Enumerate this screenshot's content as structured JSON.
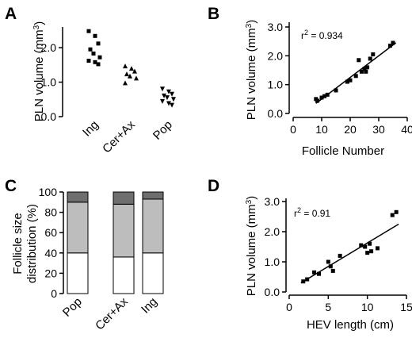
{
  "chart_data": [
    {
      "panel": "A",
      "type": "scatter",
      "ylabel": "PLN volume (mm3)",
      "ylabel_main": "PLN volume (mm",
      "ylabel_sup": "3",
      "ylabel_close": ")",
      "ylim": [
        0,
        2.6
      ],
      "yticks": [
        "0.0",
        "1.0",
        "2.0"
      ],
      "yticks_values": [
        0,
        1,
        2
      ],
      "categories": [
        "Ing",
        "Cer+Ax",
        "Pop"
      ],
      "markers": [
        "square",
        "triangle-up",
        "triangle-down"
      ],
      "series": [
        {
          "values": [
            2.48,
            2.34,
            2.12,
            1.95,
            1.83,
            1.72,
            1.62,
            1.58,
            1.52
          ]
        },
        {
          "values": [
            1.47,
            1.4,
            1.32,
            1.24,
            1.18,
            1.12,
            0.98
          ]
        },
        {
          "values": [
            0.8,
            0.72,
            0.65,
            0.6,
            0.55,
            0.5,
            0.44,
            0.38,
            0.33
          ]
        }
      ]
    },
    {
      "panel": "B",
      "type": "scatter",
      "xlabel": "Follicle Number",
      "ylabel": "PLN volume (mm3)",
      "ylabel_main": "PLN volume (mm",
      "ylabel_sup": "3",
      "ylabel_close": ")",
      "xlim": [
        0,
        40
      ],
      "ylim": [
        0,
        3.0
      ],
      "xticks": [
        "0",
        "10",
        "20",
        "30",
        "40"
      ],
      "xticks_values": [
        0,
        10,
        20,
        30,
        40
      ],
      "yticks": [
        "0.0",
        "1.0",
        "2.0",
        "3.0"
      ],
      "yticks_values": [
        0,
        1,
        2,
        3
      ],
      "annotation": {
        "pre": "r",
        "sup": "2",
        "post": " = 0.934"
      },
      "fit_line": {
        "x": [
          8,
          36
        ],
        "y": [
          0.35,
          2.45
        ]
      },
      "points": [
        {
          "x": 8,
          "y": 0.5
        },
        {
          "x": 8.5,
          "y": 0.44
        },
        {
          "x": 10,
          "y": 0.55
        },
        {
          "x": 11,
          "y": 0.6
        },
        {
          "x": 12,
          "y": 0.65
        },
        {
          "x": 15,
          "y": 0.8
        },
        {
          "x": 19,
          "y": 1.1
        },
        {
          "x": 20,
          "y": 1.15
        },
        {
          "x": 22,
          "y": 1.3
        },
        {
          "x": 23,
          "y": 1.85
        },
        {
          "x": 24,
          "y": 1.45
        },
        {
          "x": 25,
          "y": 1.55
        },
        {
          "x": 25.5,
          "y": 1.45
        },
        {
          "x": 26,
          "y": 1.6
        },
        {
          "x": 27,
          "y": 1.9
        },
        {
          "x": 28,
          "y": 2.05
        },
        {
          "x": 34,
          "y": 2.35
        },
        {
          "x": 35,
          "y": 2.45
        }
      ]
    },
    {
      "panel": "C",
      "type": "bar",
      "stacked": true,
      "ylabel": "Follicle size distribution (%)",
      "ylabel_lines": [
        "Follicle size",
        "distribution (%)"
      ],
      "ylim": [
        0,
        100
      ],
      "yticks": [
        "0",
        "20",
        "40",
        "60",
        "80",
        "100"
      ],
      "yticks_values": [
        0,
        20,
        40,
        60,
        80,
        100
      ],
      "categories": [
        "Pop",
        "Cer+Ax",
        "Ing"
      ],
      "colors": [
        "#ffffff",
        "#bdbdbd",
        "#6e6e6e"
      ],
      "series": [
        {
          "values": [
            40,
            36,
            40
          ]
        },
        {
          "values": [
            50,
            52,
            53
          ]
        },
        {
          "values": [
            10,
            12,
            7
          ]
        }
      ]
    },
    {
      "panel": "D",
      "type": "scatter",
      "xlabel": "HEV length (cm)",
      "ylabel": "PLN volume (mm3)",
      "ylabel_main": "PLN volume (mm",
      "ylabel_sup": "3",
      "ylabel_close": ")",
      "xlim": [
        0,
        15
      ],
      "ylim": [
        0,
        3.0
      ],
      "xticks": [
        "0",
        "5",
        "10",
        "15"
      ],
      "xticks_values": [
        0,
        5,
        10,
        15
      ],
      "yticks": [
        "0.0",
        "1.0",
        "2.0",
        "3.0"
      ],
      "yticks_values": [
        0,
        1,
        2,
        3
      ],
      "annotation": {
        "pre": "r",
        "sup": "2",
        "post": " = 0.91"
      },
      "fit_line": {
        "x": [
          1.5,
          14
        ],
        "y": [
          0.3,
          2.25
        ]
      },
      "points": [
        {
          "x": 1.8,
          "y": 0.35
        },
        {
          "x": 2.3,
          "y": 0.42
        },
        {
          "x": 3.2,
          "y": 0.65
        },
        {
          "x": 3.8,
          "y": 0.6
        },
        {
          "x": 5.0,
          "y": 1.0
        },
        {
          "x": 5.3,
          "y": 0.85
        },
        {
          "x": 5.6,
          "y": 0.7
        },
        {
          "x": 6.5,
          "y": 1.2
        },
        {
          "x": 9.2,
          "y": 1.55
        },
        {
          "x": 9.7,
          "y": 1.5
        },
        {
          "x": 10.0,
          "y": 1.3
        },
        {
          "x": 10.3,
          "y": 1.6
        },
        {
          "x": 10.5,
          "y": 1.35
        },
        {
          "x": 11.3,
          "y": 1.45
        },
        {
          "x": 13.2,
          "y": 2.55
        },
        {
          "x": 13.7,
          "y": 2.65
        }
      ]
    }
  ],
  "panel_labels": [
    "A",
    "B",
    "C",
    "D"
  ]
}
